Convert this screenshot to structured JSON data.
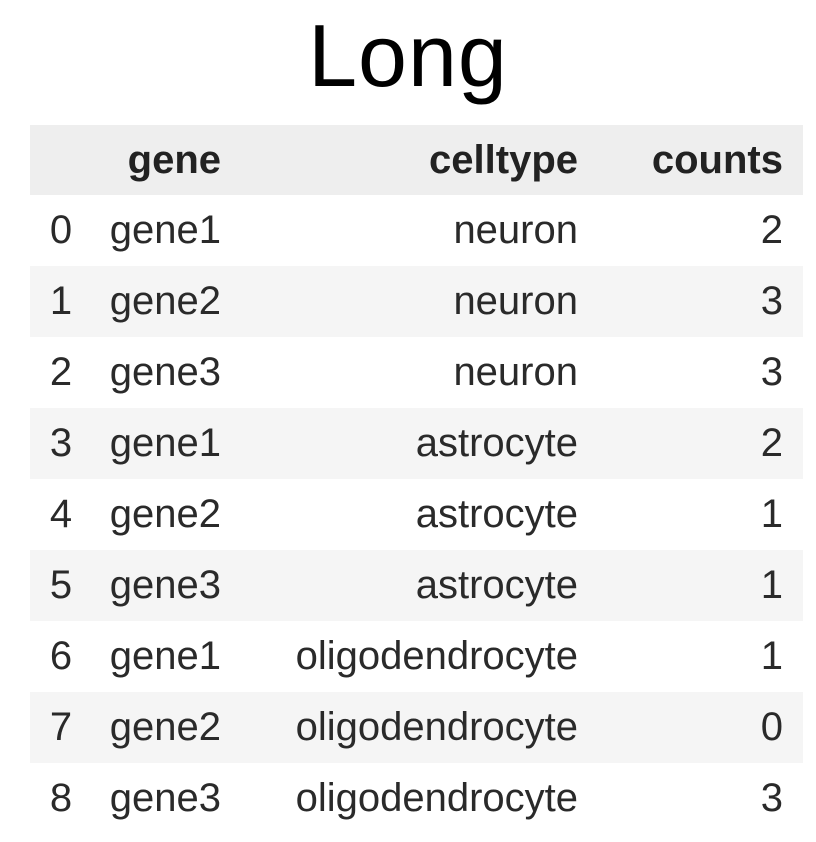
{
  "title": "Long",
  "table": {
    "columns": [
      "gene",
      "celltype",
      "counts"
    ],
    "rows": [
      {
        "index": "0",
        "gene": "gene1",
        "celltype": "neuron",
        "counts": "2"
      },
      {
        "index": "1",
        "gene": "gene2",
        "celltype": "neuron",
        "counts": "3"
      },
      {
        "index": "2",
        "gene": "gene3",
        "celltype": "neuron",
        "counts": "3"
      },
      {
        "index": "3",
        "gene": "gene1",
        "celltype": "astrocyte",
        "counts": "2"
      },
      {
        "index": "4",
        "gene": "gene2",
        "celltype": "astrocyte",
        "counts": "1"
      },
      {
        "index": "5",
        "gene": "gene3",
        "celltype": "astrocyte",
        "counts": "1"
      },
      {
        "index": "6",
        "gene": "gene1",
        "celltype": "oligodendrocyte",
        "counts": "1"
      },
      {
        "index": "7",
        "gene": "gene2",
        "celltype": "oligodendrocyte",
        "counts": "0"
      },
      {
        "index": "8",
        "gene": "gene3",
        "celltype": "oligodendrocyte",
        "counts": "3"
      }
    ]
  },
  "colors": {
    "header_bg": "#eeeeee",
    "stripe_bg": "#f5f5f5",
    "text": "#222222"
  }
}
